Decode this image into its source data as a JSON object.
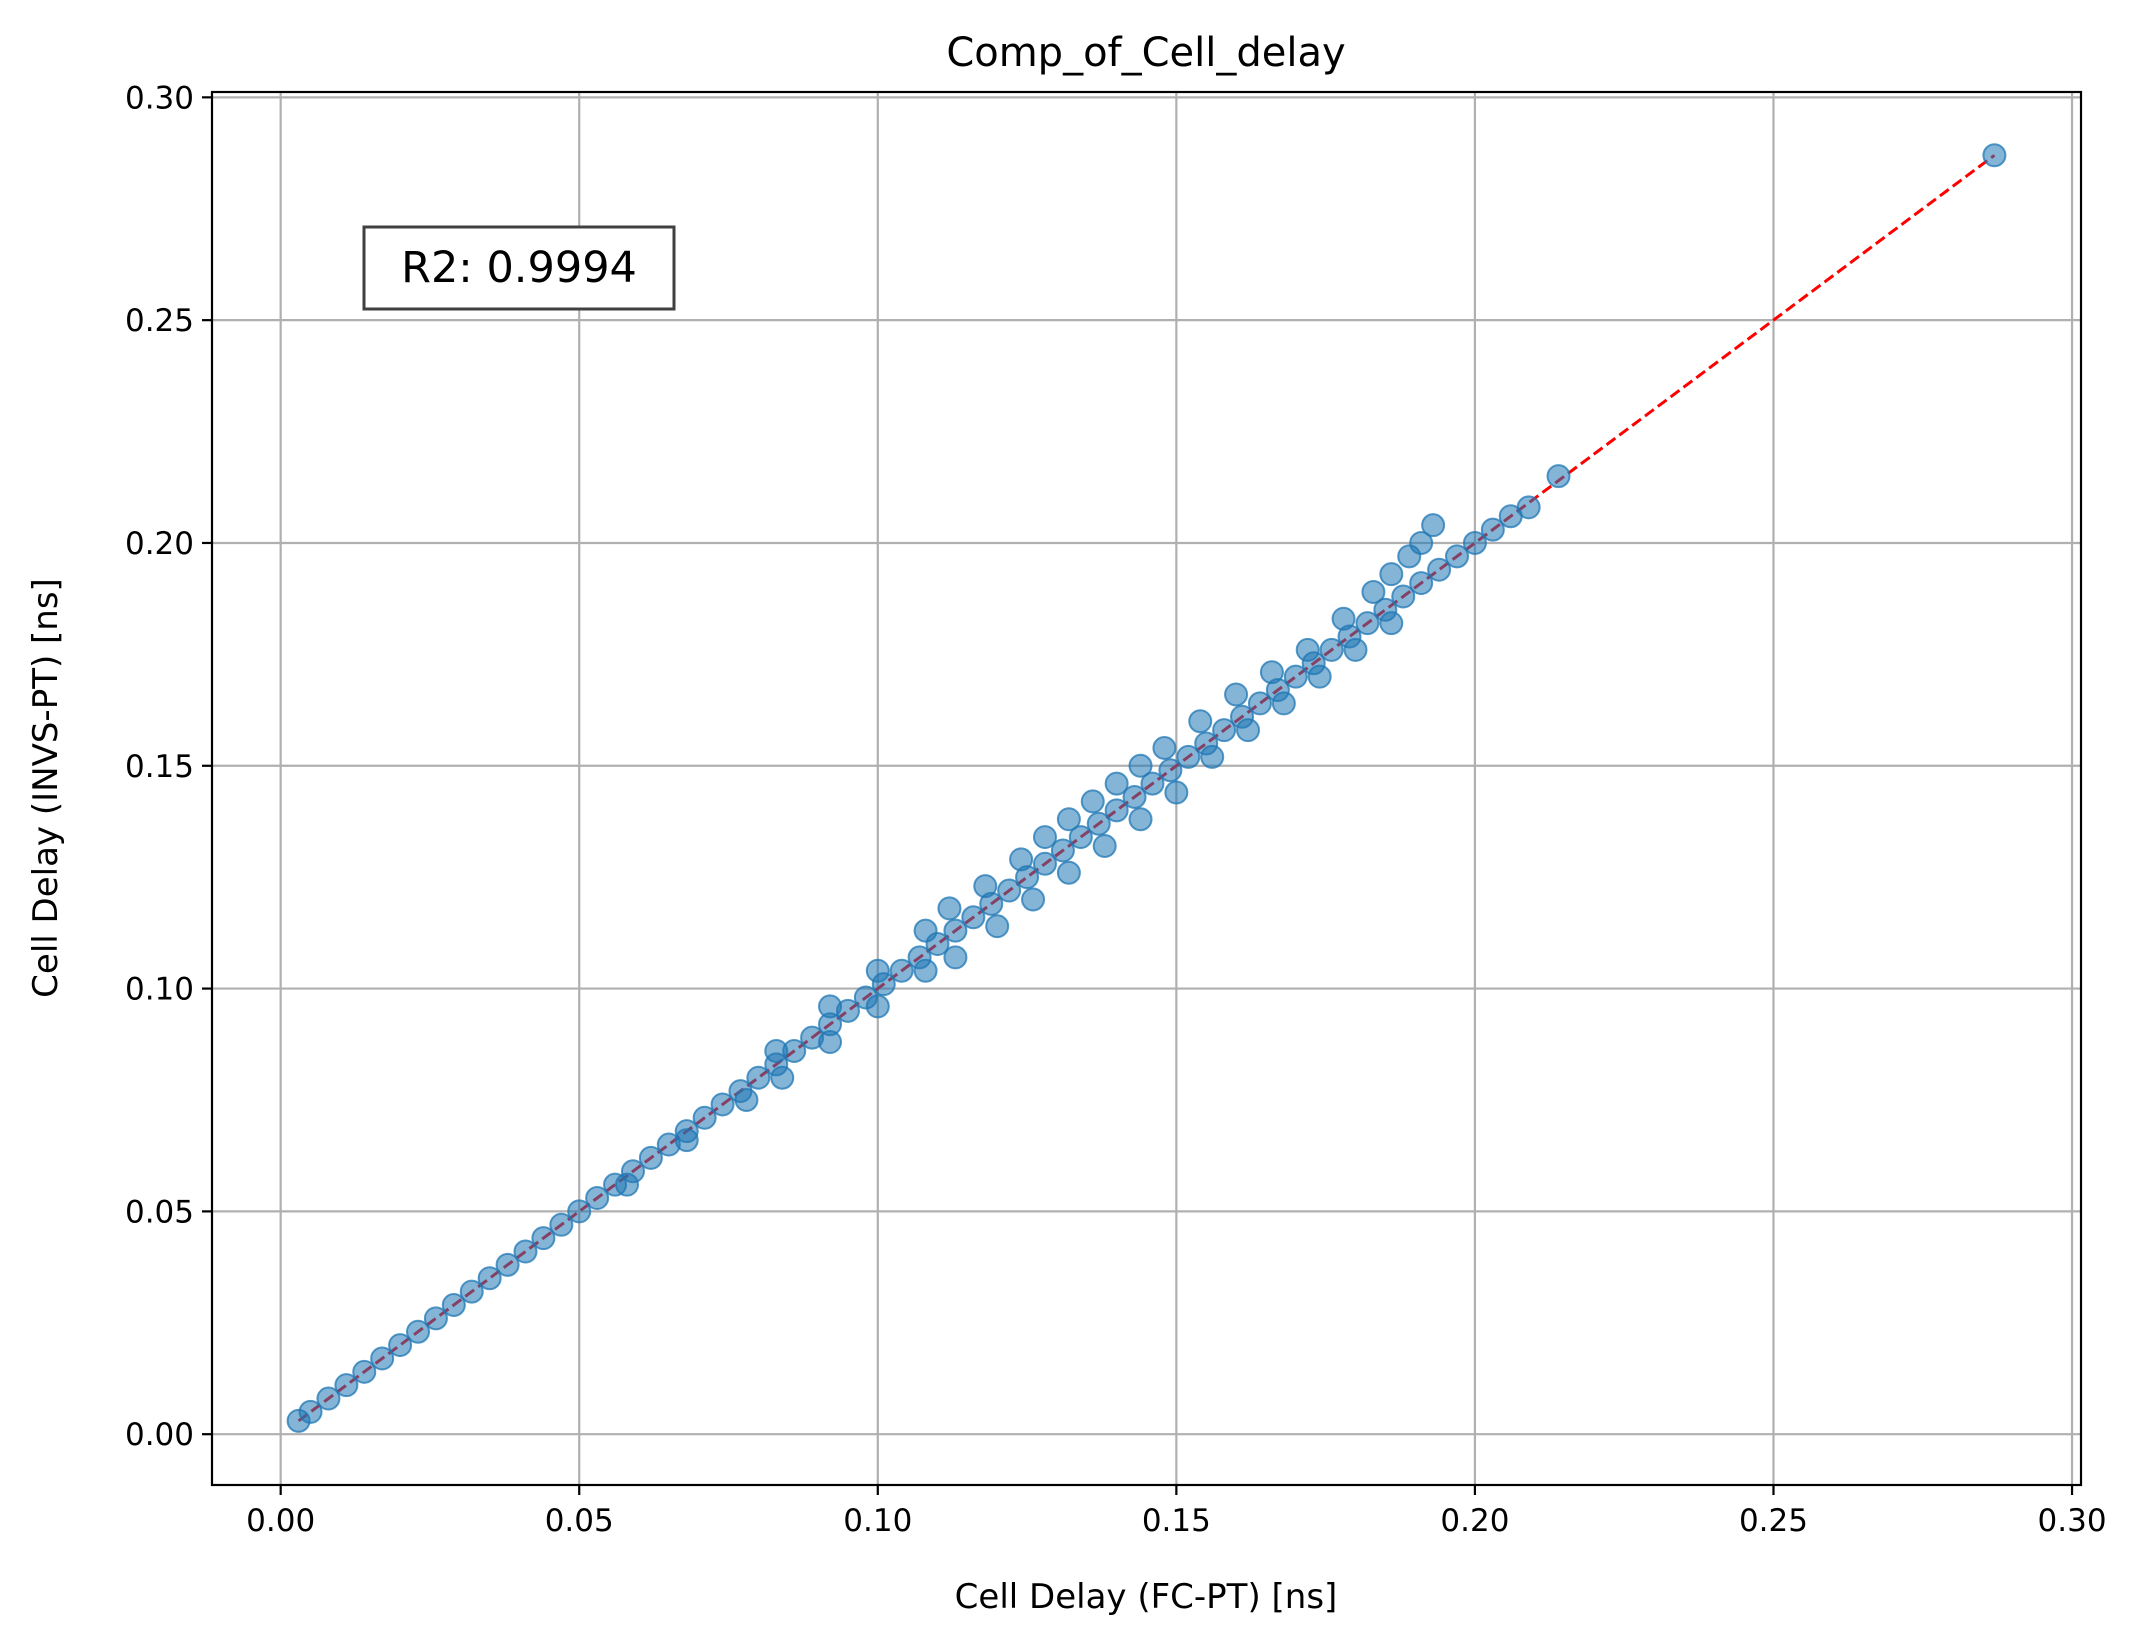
{
  "chart_data": {
    "type": "scatter",
    "title": "Comp_of_Cell_delay",
    "xlabel": "Cell Delay (FC-PT) [ns]",
    "ylabel": "Cell Delay (INVS-PT) [ns]",
    "xlim": [
      -0.0115,
      0.3015
    ],
    "ylim": [
      -0.0114,
      0.3012
    ],
    "xticks": [
      "0.00",
      "0.05",
      "0.10",
      "0.15",
      "0.20",
      "0.25",
      "0.30"
    ],
    "yticks": [
      "0.00",
      "0.05",
      "0.10",
      "0.15",
      "0.20",
      "0.25",
      "0.30"
    ],
    "xtick_values": [
      0.0,
      0.05,
      0.1,
      0.15,
      0.2,
      0.25,
      0.3
    ],
    "ytick_values": [
      0.0,
      0.05,
      0.1,
      0.15,
      0.2,
      0.25,
      0.3
    ],
    "grid": true,
    "annotation": "R2: 0.9994",
    "marker_color": "#1f77b4",
    "reference_line": {
      "style": "dashed",
      "color": "#ff0000",
      "from": [
        0.003,
        0.003
      ],
      "to": [
        0.287,
        0.287
      ]
    },
    "series": [
      {
        "points": [
          [
            0.003,
            0.003
          ],
          [
            0.005,
            0.005
          ],
          [
            0.008,
            0.008
          ],
          [
            0.011,
            0.011
          ],
          [
            0.014,
            0.014
          ],
          [
            0.017,
            0.017
          ],
          [
            0.02,
            0.02
          ],
          [
            0.023,
            0.023
          ],
          [
            0.026,
            0.026
          ],
          [
            0.029,
            0.029
          ],
          [
            0.032,
            0.032
          ],
          [
            0.035,
            0.035
          ],
          [
            0.038,
            0.038
          ],
          [
            0.041,
            0.041
          ],
          [
            0.044,
            0.044
          ],
          [
            0.047,
            0.047
          ],
          [
            0.05,
            0.05
          ],
          [
            0.053,
            0.053
          ],
          [
            0.056,
            0.056
          ],
          [
            0.059,
            0.059
          ],
          [
            0.062,
            0.062
          ],
          [
            0.065,
            0.065
          ],
          [
            0.068,
            0.068
          ],
          [
            0.071,
            0.071
          ],
          [
            0.074,
            0.074
          ],
          [
            0.077,
            0.077
          ],
          [
            0.08,
            0.08
          ],
          [
            0.083,
            0.083
          ],
          [
            0.086,
            0.086
          ],
          [
            0.089,
            0.089
          ],
          [
            0.092,
            0.092
          ],
          [
            0.095,
            0.095
          ],
          [
            0.098,
            0.098
          ],
          [
            0.101,
            0.101
          ],
          [
            0.104,
            0.104
          ],
          [
            0.107,
            0.107
          ],
          [
            0.11,
            0.11
          ],
          [
            0.113,
            0.113
          ],
          [
            0.116,
            0.116
          ],
          [
            0.119,
            0.119
          ],
          [
            0.122,
            0.122
          ],
          [
            0.125,
            0.125
          ],
          [
            0.128,
            0.128
          ],
          [
            0.131,
            0.131
          ],
          [
            0.134,
            0.134
          ],
          [
            0.137,
            0.137
          ],
          [
            0.14,
            0.14
          ],
          [
            0.143,
            0.143
          ],
          [
            0.146,
            0.146
          ],
          [
            0.149,
            0.149
          ],
          [
            0.152,
            0.152
          ],
          [
            0.155,
            0.155
          ],
          [
            0.158,
            0.158
          ],
          [
            0.161,
            0.161
          ],
          [
            0.164,
            0.164
          ],
          [
            0.167,
            0.167
          ],
          [
            0.17,
            0.17
          ],
          [
            0.173,
            0.173
          ],
          [
            0.176,
            0.176
          ],
          [
            0.179,
            0.179
          ],
          [
            0.182,
            0.182
          ],
          [
            0.185,
            0.185
          ],
          [
            0.188,
            0.188
          ],
          [
            0.191,
            0.191
          ],
          [
            0.194,
            0.194
          ],
          [
            0.197,
            0.197
          ],
          [
            0.2,
            0.2
          ],
          [
            0.203,
            0.203
          ],
          [
            0.206,
            0.206
          ],
          [
            0.209,
            0.208
          ],
          [
            0.214,
            0.215
          ],
          [
            0.287,
            0.287
          ],
          [
            0.083,
            0.086
          ],
          [
            0.092,
            0.096
          ],
          [
            0.1,
            0.104
          ],
          [
            0.108,
            0.113
          ],
          [
            0.112,
            0.118
          ],
          [
            0.118,
            0.123
          ],
          [
            0.124,
            0.129
          ],
          [
            0.128,
            0.134
          ],
          [
            0.132,
            0.138
          ],
          [
            0.136,
            0.142
          ],
          [
            0.14,
            0.146
          ],
          [
            0.144,
            0.15
          ],
          [
            0.148,
            0.154
          ],
          [
            0.154,
            0.16
          ],
          [
            0.16,
            0.166
          ],
          [
            0.166,
            0.171
          ],
          [
            0.172,
            0.176
          ],
          [
            0.178,
            0.183
          ],
          [
            0.183,
            0.189
          ],
          [
            0.186,
            0.193
          ],
          [
            0.189,
            0.197
          ],
          [
            0.191,
            0.2
          ],
          [
            0.193,
            0.204
          ],
          [
            0.084,
            0.08
          ],
          [
            0.092,
            0.088
          ],
          [
            0.1,
            0.096
          ],
          [
            0.108,
            0.104
          ],
          [
            0.113,
            0.107
          ],
          [
            0.12,
            0.114
          ],
          [
            0.126,
            0.12
          ],
          [
            0.132,
            0.126
          ],
          [
            0.138,
            0.132
          ],
          [
            0.144,
            0.138
          ],
          [
            0.15,
            0.144
          ],
          [
            0.156,
            0.152
          ],
          [
            0.162,
            0.158
          ],
          [
            0.168,
            0.164
          ],
          [
            0.174,
            0.17
          ],
          [
            0.18,
            0.176
          ],
          [
            0.186,
            0.182
          ],
          [
            0.078,
            0.075
          ],
          [
            0.068,
            0.066
          ],
          [
            0.058,
            0.056
          ]
        ]
      }
    ]
  }
}
